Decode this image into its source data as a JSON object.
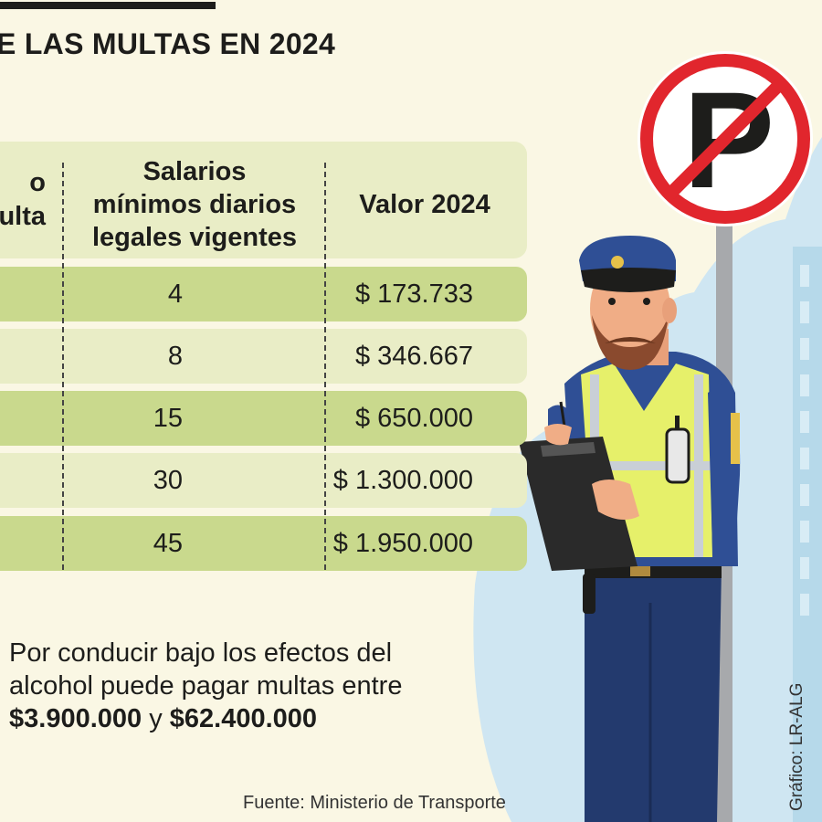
{
  "title": "E LAS MULTAS EN 2024",
  "table": {
    "headers": {
      "col1_line1": "o",
      "col1_line2": "ulta",
      "col2_line1": "Salarios",
      "col2_line2": "mínimos diarios",
      "col2_line3": "legales vigentes",
      "col3": "Valor 2024"
    },
    "rows": [
      {
        "smdlv": "4",
        "valor": "$ 173.733"
      },
      {
        "smdlv": "8",
        "valor": "$ 346.667"
      },
      {
        "smdlv": "15",
        "valor": "$ 650.000"
      },
      {
        "smdlv": "30",
        "valor": "$ 1.300.000"
      },
      {
        "smdlv": "45",
        "valor": "$ 1.950.000"
      }
    ]
  },
  "note": {
    "line1": "Por conducir bajo los efectos del",
    "line2": "alcohol puede pagar multas entre",
    "amount_low": "$3.900.000",
    "conjunction": "y",
    "amount_high": "$62.400.000"
  },
  "source": "Fuente: Ministerio de Transporte",
  "credit": "Gráfico: LR-ALG",
  "sign_letter": "P"
}
